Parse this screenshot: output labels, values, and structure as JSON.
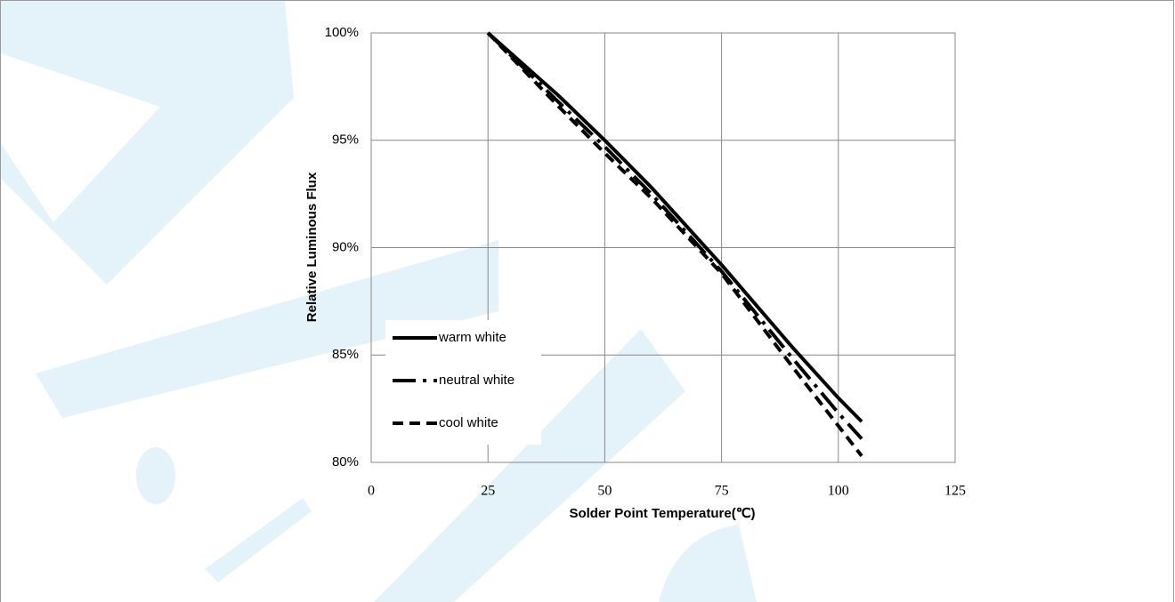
{
  "chart_data": {
    "type": "line",
    "xlabel": "Solder Point Temperature(℃)",
    "ylabel": "Relative Luminous Flux",
    "x": [
      25,
      40,
      50,
      60,
      75,
      90,
      100,
      105
    ],
    "series": [
      {
        "name": "warm white",
        "color": "#000000",
        "dash": "solid",
        "values": [
          100,
          97.1,
          95.0,
          92.8,
          89.2,
          85.4,
          83.0,
          81.9
        ]
      },
      {
        "name": "neutral white",
        "color": "#000000",
        "dash": "dash-dot",
        "values": [
          100,
          96.8,
          94.7,
          92.5,
          88.9,
          84.9,
          82.3,
          81.1
        ]
      },
      {
        "name": "cool white",
        "color": "#000000",
        "dash": "dash",
        "values": [
          100,
          96.6,
          94.4,
          92.3,
          88.8,
          84.5,
          81.7,
          80.3
        ]
      }
    ],
    "xlim": [
      0,
      125
    ],
    "xticks": [
      0,
      25,
      50,
      75,
      100,
      125
    ],
    "ylim": [
      80,
      100
    ],
    "yticks": [
      {
        "value": 80,
        "label": "80%"
      },
      {
        "value": 85,
        "label": "85%"
      },
      {
        "value": 90,
        "label": "90%"
      },
      {
        "value": 95,
        "label": "95%"
      },
      {
        "value": 100,
        "label": "100%"
      }
    ],
    "grid": true,
    "legend": "lower left"
  }
}
